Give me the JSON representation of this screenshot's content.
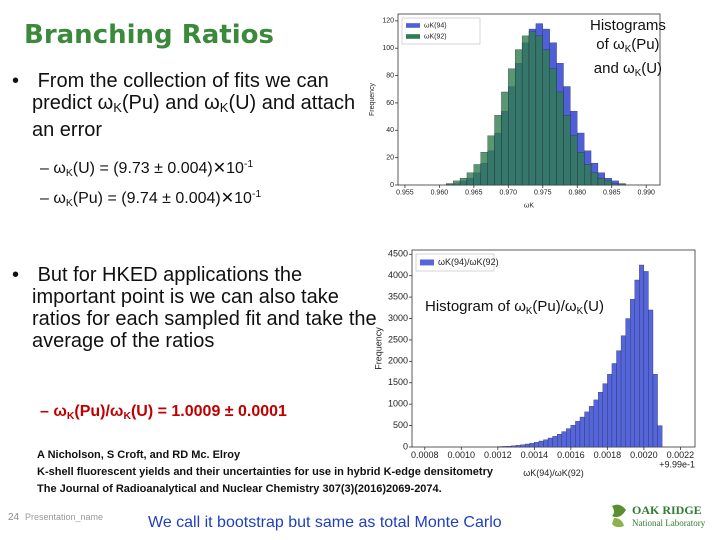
{
  "title": "Branching Ratios",
  "bullets": [
    {
      "runs": [
        "From the collection of fits we can predict ω",
        "K",
        "(Pu) and ω",
        "K",
        "(U) and attach an error"
      ],
      "sub_bullets": [
        {
          "runs": [
            "– ω",
            "K",
            "(U)  = (9.73 ± 0.004)✕10",
            "-1"
          ]
        },
        {
          "runs": [
            "– ω",
            "K",
            "(Pu) = (9.74 ± 0.004)✕10",
            "-1"
          ]
        }
      ]
    },
    {
      "runs": [
        "But for HKED applications the important point is we can also take ratios for each sampled fit and take the average of the ratios"
      ],
      "sub_bullets": [
        {
          "runs": [
            "– ω",
            "K",
            "(Pu)/ω",
            "K",
            "(U) = 1.0009 ± 0.0001"
          ]
        }
      ]
    }
  ],
  "reference": [
    "A Nicholson, S Croft, and RD Mc. Elroy",
    "K-shell fluorescent yields and their uncertainties for use in hybrid K-edge densitometry",
    "The Journal of Radioanalytical and Nuclear Chemistry 307(3)(2016)2069-2074."
  ],
  "footer": {
    "page_number": "24",
    "presentation_name": "Presentation_name",
    "note": "We call it bootstrap but same as total Monte Carlo",
    "logo": [
      "OAK RIDGE",
      "National Laboratory"
    ]
  },
  "charts": [
    {
      "type": "histogram",
      "caption_lines": [
        [
          "Histograms"
        ],
        [
          "of ω",
          "K",
          "(Pu)"
        ],
        [
          "and ω",
          "K",
          "(U)"
        ]
      ],
      "xlabel": "ωK",
      "ylabel": "Frequency",
      "bins": [
        0.961,
        0.962,
        0.963,
        0.964,
        0.965,
        0.966,
        0.967,
        0.968,
        0.969,
        0.97,
        0.971,
        0.972,
        0.973,
        0.974,
        0.975,
        0.976,
        0.977,
        0.978,
        0.979,
        0.98,
        0.981,
        0.982,
        0.983,
        0.984,
        0.985,
        0.986,
        0.987
      ],
      "series": [
        {
          "name": "ωK(94)",
          "color": "#4f5fd8",
          "values": [
            1,
            1,
            3,
            5,
            9,
            16,
            25,
            38,
            54,
            72,
            89,
            104,
            114,
            118,
            114,
            104,
            89,
            72,
            54,
            38,
            25,
            16,
            9,
            5,
            3,
            1
          ]
        },
        {
          "name": "ωK(92)",
          "color": "#2e7d4f",
          "values": [
            1,
            3,
            5,
            9,
            15,
            24,
            36,
            51,
            68,
            85,
            99,
            109,
            112,
            109,
            99,
            85,
            68,
            51,
            36,
            24,
            15,
            9,
            5,
            3,
            1,
            1
          ]
        }
      ],
      "xlim": [
        0.954,
        0.992
      ],
      "ylim": [
        0,
        125
      ],
      "xticks": [
        0.955,
        {
          "value": 0.96,
          "label": "0.960"
        },
        0.965,
        {
          "value": 0.97,
          "label": "0.970"
        },
        0.975,
        {
          "value": 0.98,
          "label": "0.980"
        },
        0.985,
        {
          "value": 0.99,
          "label": "0.990"
        }
      ],
      "yticks": [
        0,
        20,
        40,
        60,
        80,
        100,
        120
      ],
      "legend": "upper left"
    },
    {
      "type": "histogram",
      "caption_lines": [
        [
          "Histogram of ω",
          "K",
          "(Pu)/ω",
          "K",
          "(U)"
        ]
      ],
      "xlabel": "ωK(94)/ωK(92)",
      "ylabel": "Frequency",
      "offset_label": "+9.99e-1",
      "bins": [
        0.0012,
        0.001225,
        0.00125,
        0.001275,
        0.0013,
        0.001325,
        0.00135,
        0.001375,
        0.0014,
        0.001425,
        0.00145,
        0.001475,
        0.0015,
        0.001525,
        0.00155,
        0.001575,
        0.0016,
        0.001625,
        0.00165,
        0.001675,
        0.0017,
        0.001725,
        0.00175,
        0.001775,
        0.0018,
        0.001825,
        0.00185,
        0.001875,
        0.0019,
        0.001925,
        0.00195,
        0.001975,
        0.002,
        0.002025,
        0.00205,
        0.002075,
        0.0021
      ],
      "series": [
        {
          "name": "ωK(94)/ωK(92)",
          "color": "#5566dd",
          "values": [
            10,
            15,
            20,
            30,
            40,
            55,
            70,
            90,
            110,
            140,
            170,
            210,
            250,
            300,
            360,
            430,
            510,
            600,
            700,
            820,
            950,
            1100,
            1280,
            1480,
            1700,
            1950,
            2250,
            2600,
            3000,
            3450,
            3900,
            4250,
            4100,
            3200,
            1700,
            500
          ]
        }
      ],
      "xlim": [
        0.00073,
        0.00228
      ],
      "ylim": [
        0,
        4600
      ],
      "xticks": [
        0.0008,
        {
          "value": 0.001,
          "label": "0.0010"
        },
        0.0012,
        0.0014,
        0.0016,
        0.0018,
        {
          "value": 0.002,
          "label": "0.0020"
        },
        0.0022
      ],
      "yticks": [
        0,
        500,
        1000,
        1500,
        2000,
        2500,
        3000,
        3500,
        4000,
        4500
      ],
      "legend": "upper left"
    }
  ]
}
